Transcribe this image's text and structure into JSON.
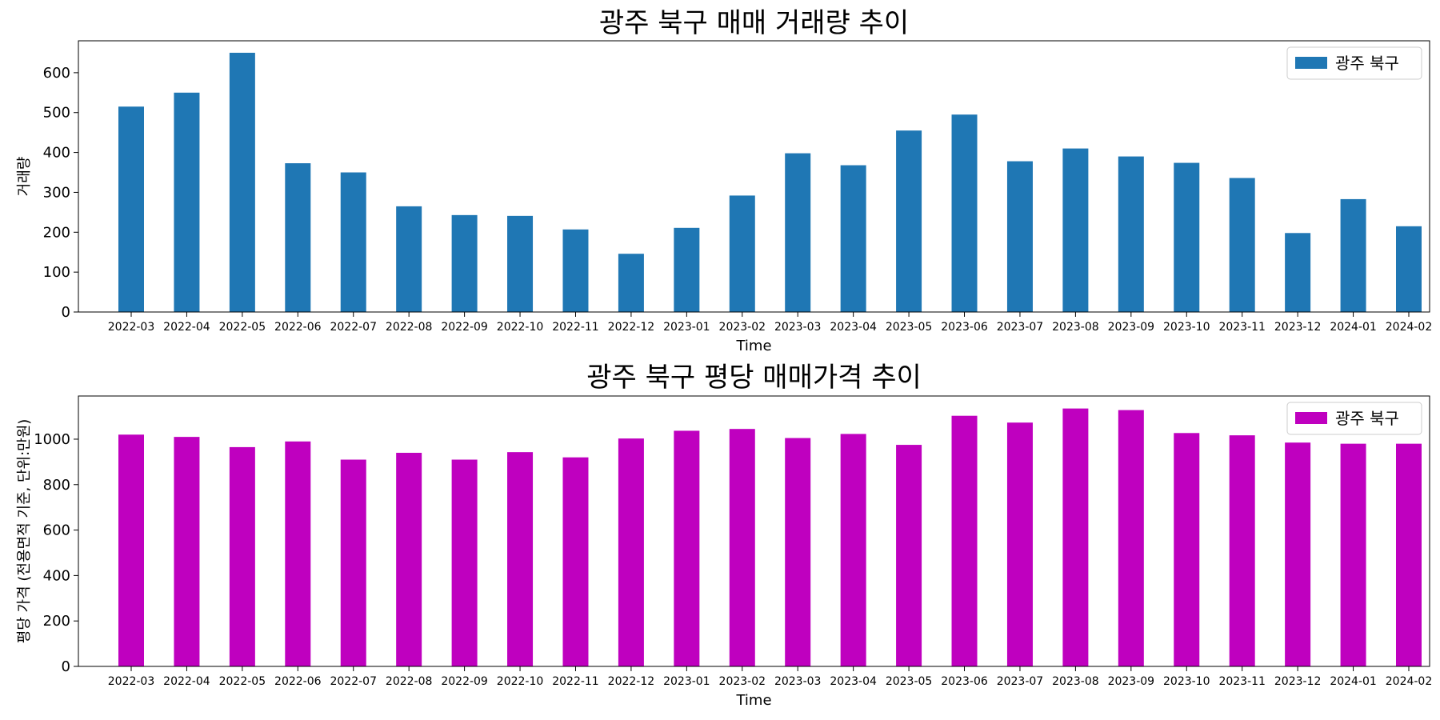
{
  "chart_data": [
    {
      "type": "bar",
      "title": "광주 북구 매매 거래량 추이",
      "xlabel": "Time",
      "ylabel": "거래량",
      "categories": [
        "2022-03",
        "2022-04",
        "2022-05",
        "2022-06",
        "2022-07",
        "2022-08",
        "2022-09",
        "2022-10",
        "2022-11",
        "2022-12",
        "2023-01",
        "2023-02",
        "2023-03",
        "2023-04",
        "2023-05",
        "2023-06",
        "2023-07",
        "2023-08",
        "2023-09",
        "2023-10",
        "2023-11",
        "2023-12",
        "2024-01",
        "2024-02"
      ],
      "series": [
        {
          "name": "광주 북구",
          "color": "#1f77b4",
          "values": [
            515,
            550,
            650,
            373,
            350,
            265,
            243,
            241,
            207,
            146,
            211,
            292,
            398,
            368,
            455,
            495,
            378,
            410,
            390,
            374,
            336,
            198,
            283,
            215
          ]
        }
      ],
      "ylim": [
        0,
        680
      ],
      "yticks": [
        0,
        100,
        200,
        300,
        400,
        500,
        600
      ],
      "legend": "top-right",
      "grid": false
    },
    {
      "type": "bar",
      "title": "광주 북구 평당 매매가격 추이",
      "xlabel": "Time",
      "ylabel": "평당 가격 (전용면적 기준, 단위:만원)",
      "categories": [
        "2022-03",
        "2022-04",
        "2022-05",
        "2022-06",
        "2022-07",
        "2022-08",
        "2022-09",
        "2022-10",
        "2022-11",
        "2022-12",
        "2023-01",
        "2023-02",
        "2023-03",
        "2023-04",
        "2023-05",
        "2023-06",
        "2023-07",
        "2023-08",
        "2023-09",
        "2023-10",
        "2023-11",
        "2023-12",
        "2024-01",
        "2024-02"
      ],
      "series": [
        {
          "name": "광주 북구",
          "color": "#bf00bf",
          "values": [
            1020,
            1010,
            965,
            990,
            910,
            940,
            910,
            943,
            920,
            1003,
            1037,
            1045,
            1005,
            1023,
            975,
            1103,
            1073,
            1135,
            1128,
            1027,
            1017,
            985,
            980,
            980
          ]
        }
      ],
      "ylim": [
        0,
        1190
      ],
      "yticks": [
        0,
        200,
        400,
        600,
        800,
        1000
      ],
      "legend": "top-right",
      "grid": false
    }
  ]
}
